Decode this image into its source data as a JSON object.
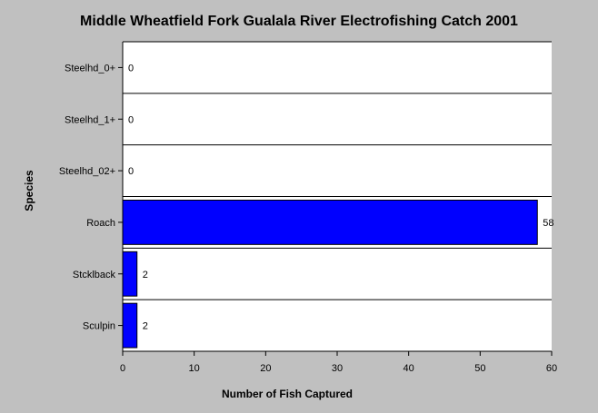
{
  "chart_data": {
    "type": "bar",
    "orientation": "horizontal",
    "title": "Middle Wheatfield Fork Gualala River Electrofishing Catch 2001",
    "xlabel": "Number of Fish Captured",
    "ylabel": "Species",
    "categories": [
      "Steelhd_0+",
      "Steelhd_1+",
      "Steelhd_02+",
      "Roach",
      "Stcklback",
      "Sculpin"
    ],
    "values": [
      0,
      0,
      0,
      58,
      2,
      2
    ],
    "xlim": [
      0,
      60
    ],
    "xticks": [
      0,
      10,
      20,
      30,
      40,
      50,
      60
    ],
    "grid": "horizontal category separators",
    "legend": "none",
    "colors": {
      "background": "#c0c0c0",
      "plot_background": "#ffffff",
      "bar": "#0000ff",
      "axis": "#000000"
    }
  }
}
